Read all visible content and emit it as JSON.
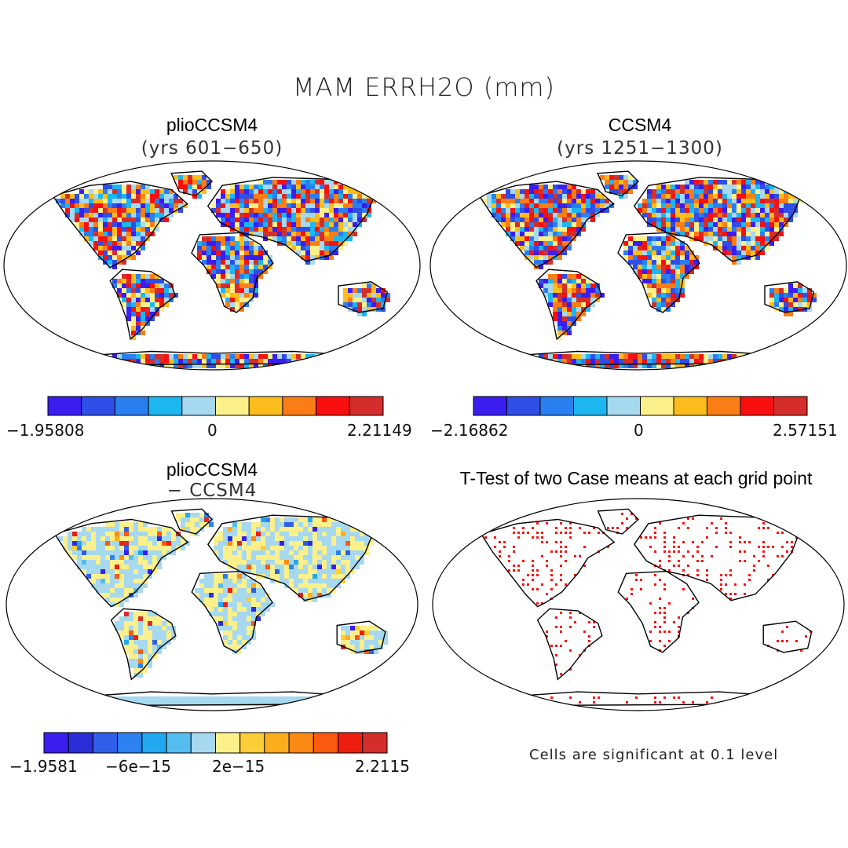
{
  "main_title": "MAM ERRH2O (mm)",
  "panels": [
    {
      "title": "plioCCSM4",
      "subtitle": "(yrs 601−650)",
      "type": "field"
    },
    {
      "title": "CCSM4",
      "subtitle": "(yrs 1251−1300)",
      "type": "field"
    },
    {
      "title": "plioCCSM4",
      "subtitle": "− CCSM4",
      "type": "difference"
    },
    {
      "title": "T-Test of two Case means at each grid point",
      "subtitle": "",
      "type": "significance"
    }
  ],
  "colorbars": [
    {
      "colors": [
        "#3a1ef0",
        "#2e4ee6",
        "#2a7ff0",
        "#1cb6f0",
        "#a6d8ef",
        "#fbf08a",
        "#fbbd1b",
        "#fb7d15",
        "#f8100e",
        "#d42e2c"
      ],
      "labels": [
        "−1.95808",
        "0",
        "2.21149"
      ]
    },
    {
      "colors": [
        "#3a1ef0",
        "#2e4ee6",
        "#2a7ff0",
        "#1cb6f0",
        "#a6d8ef",
        "#fbf08a",
        "#fbbd1b",
        "#fb7d15",
        "#f8100e",
        "#d42e2c"
      ],
      "labels": [
        "−2.16862",
        "0",
        "2.57151"
      ]
    },
    {
      "colors": [
        "#3a1ef0",
        "#2a2ed8",
        "#2f5ee8",
        "#2b82f0",
        "#22a8f0",
        "#53bdf0",
        "#a6d8ef",
        "#fbf08a",
        "#fbcd36",
        "#fbad1b",
        "#fb8a15",
        "#fa5a10",
        "#ef1d0e",
        "#d42e2c"
      ],
      "labels": [
        "−1.9581",
        "−6e−15",
        "2e−15",
        "2.2115"
      ]
    }
  ],
  "significance_note": "Cells are significant at 0.1 level",
  "map_projection": "Robinson"
}
